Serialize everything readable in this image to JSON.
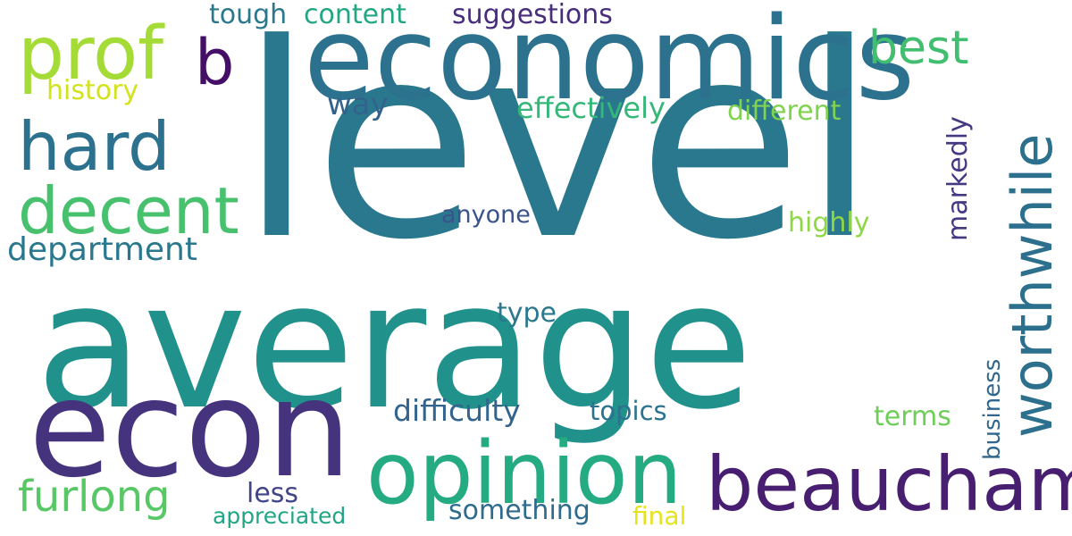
{
  "background": "#ffffff",
  "words": [
    {
      "text": "level",
      "color": "#2a788e"
    },
    {
      "text": "average",
      "color": "#21918c"
    },
    {
      "text": "economics",
      "color": "#2c728e"
    },
    {
      "text": "econ",
      "color": "#46337e"
    },
    {
      "text": "opinion",
      "color": "#25ab82"
    },
    {
      "text": "beauchamp",
      "color": "#481f70"
    },
    {
      "text": "prof",
      "color": "#a5db36"
    },
    {
      "text": "hard",
      "color": "#2c718e"
    },
    {
      "text": "decent",
      "color": "#48c16e"
    },
    {
      "text": "worthwhile",
      "color": "#2d708e"
    },
    {
      "text": "b",
      "color": "#450f67"
    },
    {
      "text": "best",
      "color": "#42be71"
    },
    {
      "text": "furlong",
      "color": "#58c765"
    },
    {
      "text": "department",
      "color": "#2a788e"
    },
    {
      "text": "history",
      "color": "#d2e21b"
    },
    {
      "text": "tough",
      "color": "#2a788e"
    },
    {
      "text": "content",
      "color": "#22a785"
    },
    {
      "text": "suggestions",
      "color": "#472d7b"
    },
    {
      "text": "way",
      "color": "#33638d"
    },
    {
      "text": "effectively",
      "color": "#35b779"
    },
    {
      "text": "different",
      "color": "#7fd34e"
    },
    {
      "text": "markedly",
      "color": "#443983"
    },
    {
      "text": "anyone",
      "color": "#3b528b"
    },
    {
      "text": "highly",
      "color": "#8fd744"
    },
    {
      "text": "type",
      "color": "#2a788e"
    },
    {
      "text": "difficulty",
      "color": "#32648e"
    },
    {
      "text": "topics",
      "color": "#2c728e"
    },
    {
      "text": "terms",
      "color": "#6ece58"
    },
    {
      "text": "business",
      "color": "#31668e"
    },
    {
      "text": "less",
      "color": "#414487"
    },
    {
      "text": "something",
      "color": "#2f6b8e"
    },
    {
      "text": "appreciated",
      "color": "#21a685"
    },
    {
      "text": "final",
      "color": "#e5e419"
    }
  ]
}
